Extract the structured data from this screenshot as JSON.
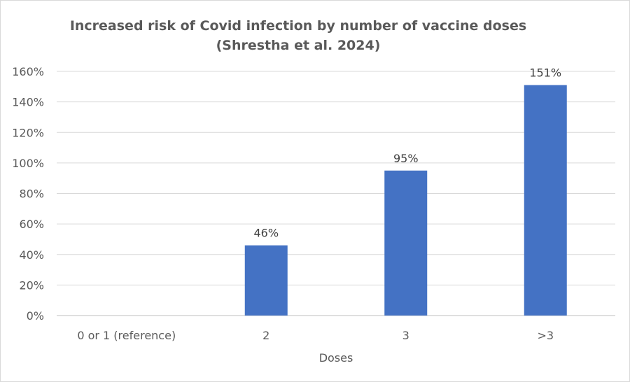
{
  "chart_data": {
    "type": "bar",
    "title": "Increased risk of Covid infection by number of vaccine doses",
    "subtitle": "(Shrestha et al. 2024)",
    "categories": [
      "0 or 1 (reference)",
      "2",
      "3",
      ">3"
    ],
    "values": [
      0,
      46,
      95,
      151
    ],
    "data_labels": [
      "",
      "46%",
      "95%",
      "151%"
    ],
    "xlabel": "Doses",
    "ylabel": "",
    "ylim": [
      0,
      160
    ],
    "yticks": [
      "0%",
      "20%",
      "40%",
      "60%",
      "80%",
      "100%",
      "120%",
      "140%",
      "160%"
    ],
    "grid": true,
    "legend": "none",
    "bar_color": "#4472C4"
  }
}
